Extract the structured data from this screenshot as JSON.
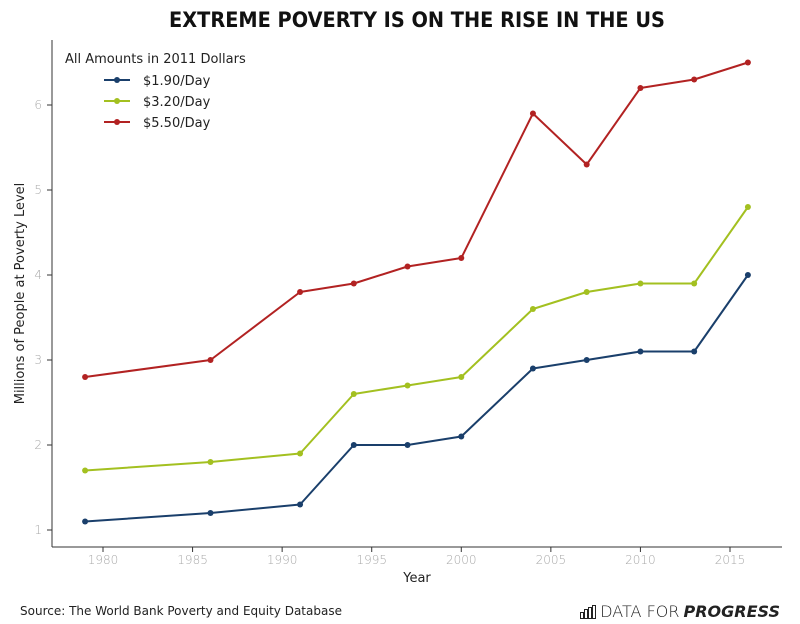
{
  "chart_data": {
    "type": "line",
    "title": "EXTREME POVERTY IS ON THE RISE IN THE US",
    "xlabel": "Year",
    "ylabel": "Millions of People at Poverty Level",
    "xlim": [
      1976,
      2019
    ],
    "ylim": [
      0.85,
      6.75
    ],
    "xticks": [
      1980,
      1985,
      1990,
      1995,
      2000,
      2005,
      2010,
      2015
    ],
    "xtick_labels": [
      "1980",
      "1985",
      "1990",
      "1995",
      "2000",
      "2005",
      "2010",
      "2015"
    ],
    "yticks": [
      1,
      2,
      3,
      4,
      5,
      6
    ],
    "ytick_labels": [
      "1",
      "2",
      "3",
      "4",
      "5",
      "6"
    ],
    "grid": false,
    "legend": {
      "title": "All Amounts in 2011 Dollars",
      "placement": "top-left"
    },
    "x": [
      1979,
      1986,
      1991,
      1994,
      1997,
      2000,
      2004,
      2007,
      2010,
      2013,
      2016
    ],
    "series": [
      {
        "name": "$1.90/Day",
        "color": "#1a3f6b",
        "values": [
          1.1,
          1.2,
          1.3,
          2.0,
          2.0,
          2.1,
          2.9,
          3.0,
          3.1,
          3.1,
          4.0
        ]
      },
      {
        "name": "$3.20/Day",
        "color": "#a3c020",
        "values": [
          1.7,
          1.8,
          1.9,
          2.6,
          2.7,
          2.8,
          3.6,
          3.8,
          3.9,
          3.9,
          4.8
        ]
      },
      {
        "name": "$5.50/Day",
        "color": "#b22222",
        "values": [
          2.8,
          3.0,
          3.8,
          3.9,
          4.1,
          4.2,
          5.9,
          5.3,
          6.2,
          6.3,
          6.5
        ]
      }
    ]
  },
  "footer": {
    "source": "Source: The World Bank Poverty and Equity Database",
    "logo_light": "DATA FOR",
    "logo_bold": "PROGRESS"
  }
}
